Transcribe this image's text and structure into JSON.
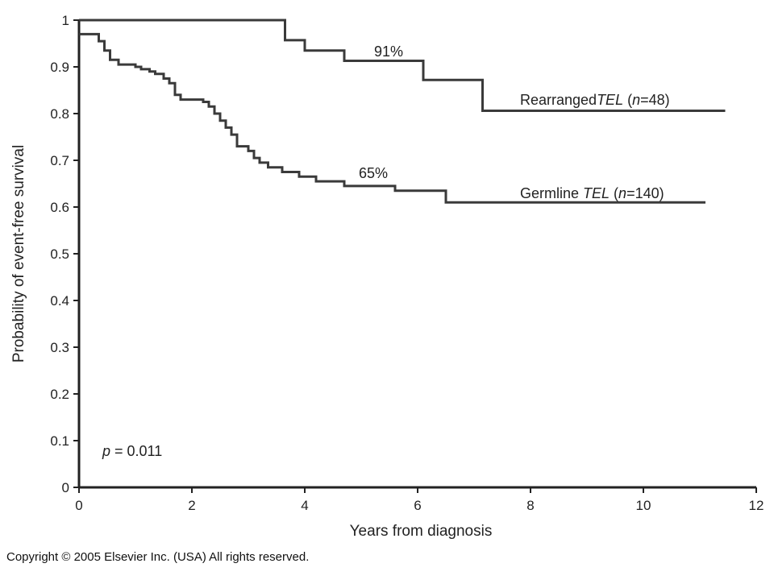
{
  "chart_data": {
    "type": "line",
    "step": true,
    "xlabel": "Years from diagnosis",
    "ylabel": "Probability of event-free survival",
    "xlim": [
      0,
      12
    ],
    "ylim": [
      0,
      1
    ],
    "x_ticks": [
      "0",
      "2",
      "4",
      "6",
      "8",
      "10",
      "12"
    ],
    "y_ticks": [
      "0",
      "0.1",
      "0.2",
      "0.3",
      "0.4",
      "0.5",
      "0.6",
      "0.7",
      "0.8",
      "0.9",
      "1"
    ],
    "grid": false,
    "series": [
      {
        "name_parts": [
          "Rearranged",
          "TEL",
          " (",
          "n",
          "=48)"
        ],
        "points": [
          [
            0,
            1.0
          ],
          [
            3.65,
            1.0
          ],
          [
            3.65,
            0.957
          ],
          [
            4.0,
            0.957
          ],
          [
            4.0,
            0.935
          ],
          [
            4.7,
            0.935
          ],
          [
            4.7,
            0.913
          ],
          [
            6.1,
            0.913
          ],
          [
            6.1,
            0.872
          ],
          [
            7.15,
            0.872
          ],
          [
            7.15,
            0.806
          ],
          [
            11.45,
            0.806
          ]
        ],
        "end_label": "91%"
      },
      {
        "name_parts": [
          "Germline ",
          "TEL",
          " (",
          "n",
          "=140)"
        ],
        "points": [
          [
            0,
            0.97
          ],
          [
            0.35,
            0.97
          ],
          [
            0.35,
            0.955
          ],
          [
            0.45,
            0.955
          ],
          [
            0.45,
            0.935
          ],
          [
            0.55,
            0.935
          ],
          [
            0.55,
            0.915
          ],
          [
            0.7,
            0.915
          ],
          [
            0.7,
            0.905
          ],
          [
            1.0,
            0.905
          ],
          [
            1.0,
            0.9
          ],
          [
            1.1,
            0.9
          ],
          [
            1.1,
            0.895
          ],
          [
            1.25,
            0.895
          ],
          [
            1.25,
            0.89
          ],
          [
            1.35,
            0.89
          ],
          [
            1.35,
            0.885
          ],
          [
            1.5,
            0.885
          ],
          [
            1.5,
            0.875
          ],
          [
            1.6,
            0.875
          ],
          [
            1.6,
            0.865
          ],
          [
            1.7,
            0.865
          ],
          [
            1.7,
            0.84
          ],
          [
            1.8,
            0.84
          ],
          [
            1.8,
            0.83
          ],
          [
            2.2,
            0.83
          ],
          [
            2.2,
            0.825
          ],
          [
            2.3,
            0.825
          ],
          [
            2.3,
            0.815
          ],
          [
            2.4,
            0.815
          ],
          [
            2.4,
            0.8
          ],
          [
            2.5,
            0.8
          ],
          [
            2.5,
            0.785
          ],
          [
            2.6,
            0.785
          ],
          [
            2.6,
            0.77
          ],
          [
            2.7,
            0.77
          ],
          [
            2.7,
            0.755
          ],
          [
            2.8,
            0.755
          ],
          [
            2.8,
            0.73
          ],
          [
            3.0,
            0.73
          ],
          [
            3.0,
            0.72
          ],
          [
            3.1,
            0.72
          ],
          [
            3.1,
            0.705
          ],
          [
            3.2,
            0.705
          ],
          [
            3.2,
            0.695
          ],
          [
            3.35,
            0.695
          ],
          [
            3.35,
            0.685
          ],
          [
            3.6,
            0.685
          ],
          [
            3.6,
            0.675
          ],
          [
            3.9,
            0.675
          ],
          [
            3.9,
            0.665
          ],
          [
            4.2,
            0.665
          ],
          [
            4.2,
            0.655
          ],
          [
            4.7,
            0.655
          ],
          [
            4.7,
            0.645
          ],
          [
            5.6,
            0.645
          ],
          [
            5.6,
            0.635
          ],
          [
            6.5,
            0.635
          ],
          [
            6.5,
            0.61
          ],
          [
            11.1,
            0.61
          ]
        ],
        "end_label": "65%"
      }
    ],
    "annotation": [
      "p",
      " = 0.011"
    ]
  },
  "footer": {
    "copyright": "Copyright © 2005 Elsevier Inc. (USA) All rights reserved."
  },
  "colors": {
    "line": "#3a3a3a",
    "text": "#222222"
  }
}
